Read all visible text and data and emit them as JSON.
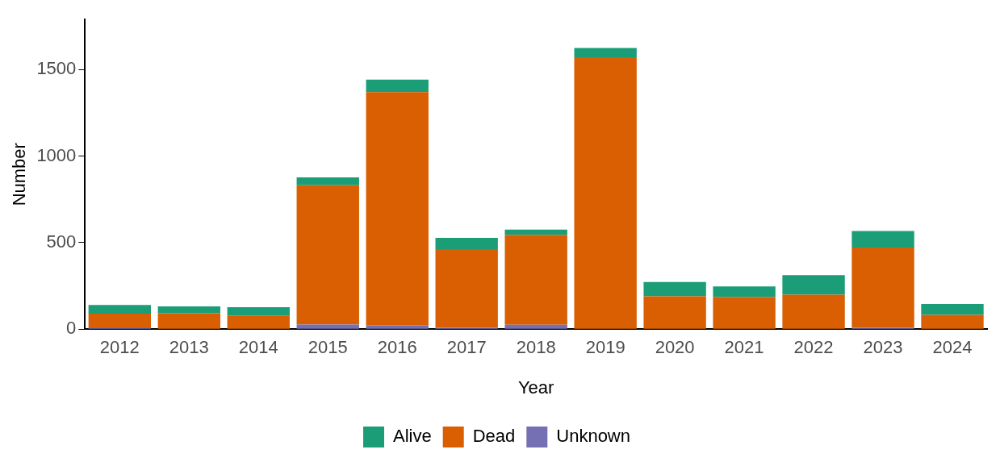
{
  "chart_data": {
    "type": "bar",
    "xlabel": "Year",
    "ylabel": "Number",
    "categories": [
      "2012",
      "2013",
      "2014",
      "2015",
      "2016",
      "2017",
      "2018",
      "2019",
      "2020",
      "2021",
      "2022",
      "2023",
      "2024"
    ],
    "series": [
      {
        "name": "Unknown",
        "color": "#7570b3",
        "values": [
          10,
          0,
          0,
          27,
          22,
          8,
          25,
          0,
          0,
          0,
          0,
          8,
          0
        ]
      },
      {
        "name": "Dead",
        "color": "#d95f02",
        "values": [
          80,
          92,
          77,
          805,
          1348,
          455,
          520,
          1572,
          190,
          186,
          199,
          464,
          83
        ]
      },
      {
        "name": "Alive",
        "color": "#1b9e77",
        "values": [
          50,
          40,
          50,
          45,
          73,
          65,
          30,
          53,
          83,
          61,
          113,
          95,
          63
        ]
      }
    ],
    "stacked": true,
    "ylim": [
      0,
      1790
    ],
    "yticks": [
      0,
      500,
      1000,
      1500
    ],
    "grid": false,
    "legend": "bottom"
  }
}
